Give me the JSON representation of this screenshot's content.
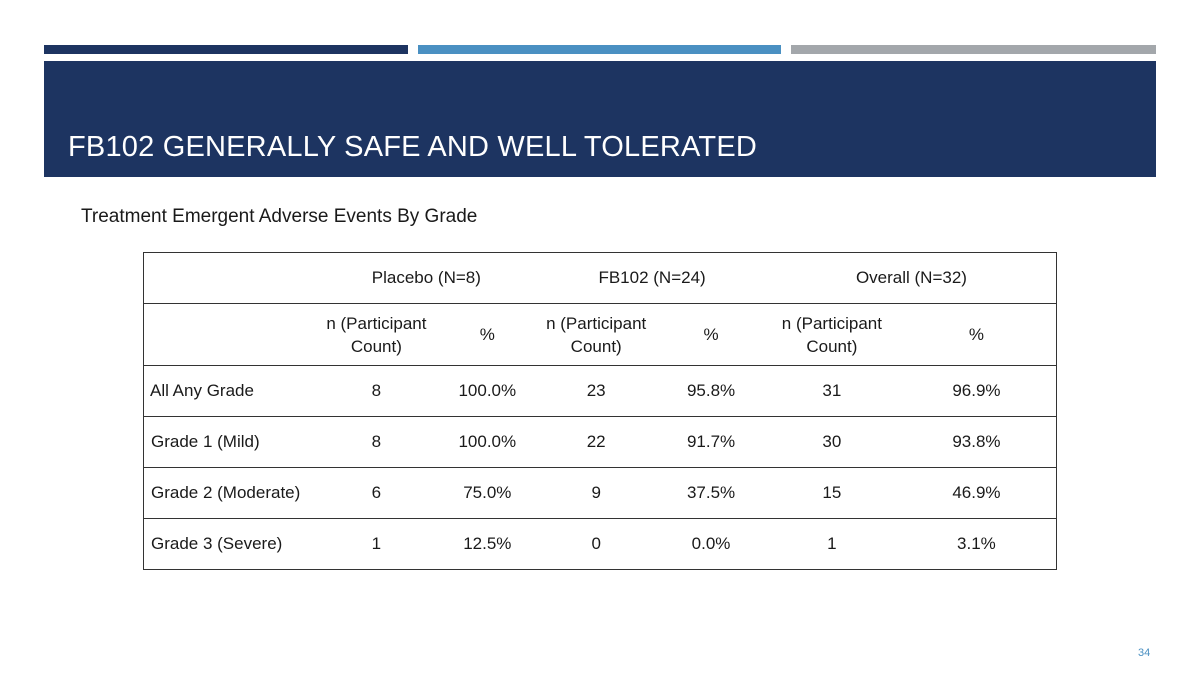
{
  "slide": {
    "title": "FB102 GENERALLY SAFE AND WELL TOLERATED",
    "subtitle": "Treatment Emergent Adverse Events By Grade",
    "page_number": "34",
    "colors": {
      "primary": "#1d3461",
      "accent_blue": "#4a90c2",
      "accent_gray": "#a3a7ab"
    }
  },
  "table": {
    "groups": [
      "Placebo (N=8)",
      "FB102 (N=24)",
      "Overall (N=32)"
    ],
    "subheaders": {
      "n_line1": "n (Participant",
      "n_line2": "Count)",
      "pct": "%"
    },
    "rows": [
      {
        "label": "All Any Grade",
        "values": [
          "8",
          "100.0%",
          "23",
          "95.8%",
          "31",
          "96.9%"
        ]
      },
      {
        "label": "Grade 1 (Mild)",
        "values": [
          "8",
          "100.0%",
          "22",
          "91.7%",
          "30",
          "93.8%"
        ]
      },
      {
        "label": "Grade 2 (Moderate)",
        "values": [
          "6",
          "75.0%",
          "9",
          "37.5%",
          "15",
          "46.9%"
        ]
      },
      {
        "label": "Grade 3 (Severe)",
        "values": [
          "1",
          "12.5%",
          "0",
          "0.0%",
          "1",
          "3.1%"
        ]
      }
    ]
  }
}
